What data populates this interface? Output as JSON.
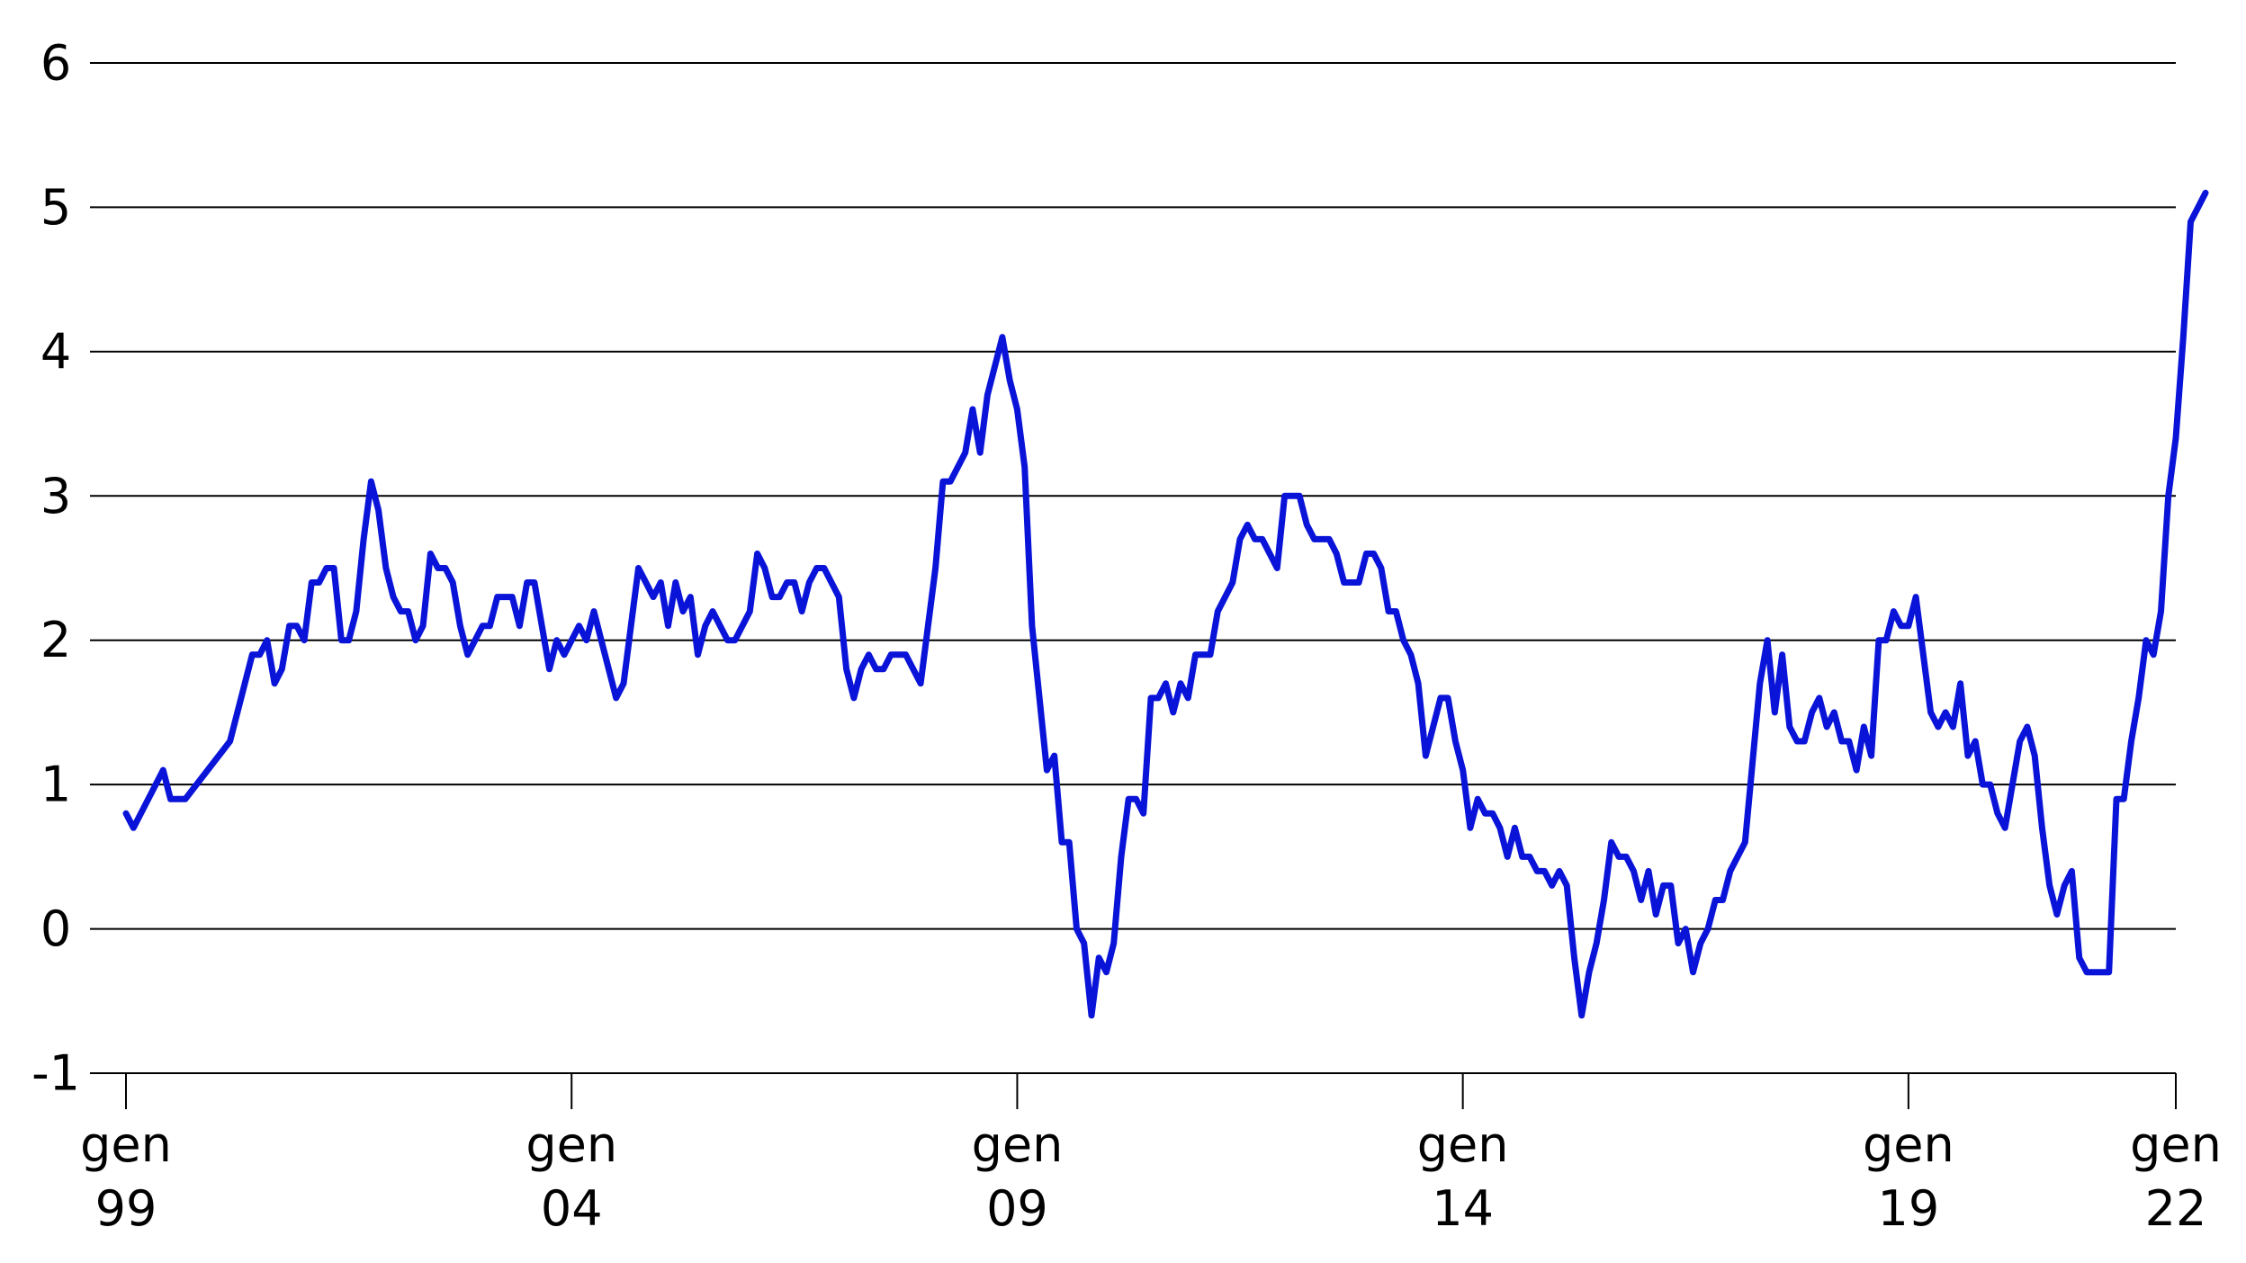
{
  "chart_data": {
    "type": "line",
    "title": "",
    "xlabel": "",
    "ylabel": "",
    "ylim": [
      -1,
      6
    ],
    "yticks": [
      "-1",
      "0",
      "1",
      "2",
      "3",
      "4",
      "5",
      "6"
    ],
    "xlim": [
      "1999-01",
      "2022-01"
    ],
    "xticks": [
      {
        "x": "1999-01",
        "line1": "gen",
        "line2": "99"
      },
      {
        "x": "2004-01",
        "line1": "gen",
        "line2": "04"
      },
      {
        "x": "2009-01",
        "line1": "gen",
        "line2": "09"
      },
      {
        "x": "2014-01",
        "line1": "gen",
        "line2": "14"
      },
      {
        "x": "2019-01",
        "line1": "gen",
        "line2": "19"
      },
      {
        "x": "2022-01",
        "line1": "gen",
        "line2": "22"
      }
    ],
    "grid": true,
    "legend": "none",
    "colors": {
      "series": "#0a14d8",
      "grid": "#000000",
      "text": "#000000"
    },
    "series": [
      {
        "points": [
          [
            "1999-01",
            0.8
          ],
          [
            "1999-02",
            0.7
          ],
          [
            "1999-06",
            1.1
          ],
          [
            "1999-07",
            0.9
          ],
          [
            "1999-09",
            0.9
          ],
          [
            "2000-03",
            1.3
          ],
          [
            "2000-06",
            1.9
          ],
          [
            "2000-07",
            1.9
          ],
          [
            "2000-08",
            2.0
          ],
          [
            "2000-09",
            1.7
          ],
          [
            "2000-10",
            1.8
          ],
          [
            "2000-11",
            2.1
          ],
          [
            "2000-12",
            2.1
          ],
          [
            "2001-01",
            2.0
          ],
          [
            "2001-02",
            2.4
          ],
          [
            "2001-03",
            2.4
          ],
          [
            "2001-04",
            2.5
          ],
          [
            "2001-05",
            2.5
          ],
          [
            "2001-06",
            2.0
          ],
          [
            "2001-07",
            2.0
          ],
          [
            "2001-08",
            2.2
          ],
          [
            "2001-09",
            2.7
          ],
          [
            "2001-10",
            3.1
          ],
          [
            "2001-11",
            2.9
          ],
          [
            "2001-12",
            2.5
          ],
          [
            "2002-01",
            2.3
          ],
          [
            "2002-02",
            2.2
          ],
          [
            "2002-03",
            2.2
          ],
          [
            "2002-04",
            2.0
          ],
          [
            "2002-05",
            2.1
          ],
          [
            "2002-06",
            2.6
          ],
          [
            "2002-07",
            2.5
          ],
          [
            "2002-08",
            2.5
          ],
          [
            "2002-09",
            2.4
          ],
          [
            "2002-10",
            2.1
          ],
          [
            "2002-11",
            1.9
          ],
          [
            "2003-01",
            2.1
          ],
          [
            "2003-02",
            2.1
          ],
          [
            "2003-03",
            2.3
          ],
          [
            "2003-05",
            2.3
          ],
          [
            "2003-06",
            2.1
          ],
          [
            "2003-07",
            2.4
          ],
          [
            "2003-08",
            2.4
          ],
          [
            "2003-10",
            1.8
          ],
          [
            "2003-11",
            2.0
          ],
          [
            "2003-12",
            1.9
          ],
          [
            "2004-02",
            2.1
          ],
          [
            "2004-03",
            2.0
          ],
          [
            "2004-04",
            2.2
          ],
          [
            "2004-05",
            2.0
          ],
          [
            "2004-07",
            1.6
          ],
          [
            "2004-08",
            1.7
          ],
          [
            "2004-09",
            2.1
          ],
          [
            "2004-10",
            2.5
          ],
          [
            "2004-11",
            2.4
          ],
          [
            "2004-12",
            2.3
          ],
          [
            "2005-01",
            2.4
          ],
          [
            "2005-02",
            2.1
          ],
          [
            "2005-03",
            2.4
          ],
          [
            "2005-04",
            2.2
          ],
          [
            "2005-05",
            2.3
          ],
          [
            "2005-06",
            1.9
          ],
          [
            "2005-07",
            2.1
          ],
          [
            "2005-08",
            2.2
          ],
          [
            "2005-10",
            2.0
          ],
          [
            "2005-11",
            2.0
          ],
          [
            "2006-01",
            2.2
          ],
          [
            "2006-02",
            2.6
          ],
          [
            "2006-03",
            2.5
          ],
          [
            "2006-04",
            2.3
          ],
          [
            "2006-05",
            2.3
          ],
          [
            "2006-06",
            2.4
          ],
          [
            "2006-07",
            2.4
          ],
          [
            "2006-08",
            2.2
          ],
          [
            "2006-09",
            2.4
          ],
          [
            "2006-10",
            2.5
          ],
          [
            "2006-11",
            2.5
          ],
          [
            "2007-01",
            2.3
          ],
          [
            "2007-02",
            1.8
          ],
          [
            "2007-03",
            1.6
          ],
          [
            "2007-04",
            1.8
          ],
          [
            "2007-05",
            1.9
          ],
          [
            "2007-06",
            1.8
          ],
          [
            "2007-07",
            1.8
          ],
          [
            "2007-08",
            1.9
          ],
          [
            "2007-10",
            1.9
          ],
          [
            "2007-12",
            1.7
          ],
          [
            "2008-02",
            2.5
          ],
          [
            "2008-03",
            3.1
          ],
          [
            "2008-04",
            3.1
          ],
          [
            "2008-06",
            3.3
          ],
          [
            "2008-07",
            3.6
          ],
          [
            "2008-08",
            3.3
          ],
          [
            "2008-09",
            3.7
          ],
          [
            "2008-11",
            4.1
          ],
          [
            "2008-12",
            3.8
          ],
          [
            "2009-01",
            3.6
          ],
          [
            "2009-02",
            3.2
          ],
          [
            "2009-03",
            2.1
          ],
          [
            "2009-05",
            1.1
          ],
          [
            "2009-06",
            1.2
          ],
          [
            "2009-07",
            0.6
          ],
          [
            "2009-08",
            0.6
          ],
          [
            "2009-09",
            0.0
          ],
          [
            "2009-10",
            -0.1
          ],
          [
            "2009-11",
            -0.6
          ],
          [
            "2009-12",
            -0.2
          ],
          [
            "2010-01",
            -0.3
          ],
          [
            "2010-02",
            -0.1
          ],
          [
            "2010-03",
            0.5
          ],
          [
            "2010-04",
            0.9
          ],
          [
            "2010-05",
            0.9
          ],
          [
            "2010-06",
            0.8
          ],
          [
            "2010-07",
            1.6
          ],
          [
            "2010-08",
            1.6
          ],
          [
            "2010-09",
            1.7
          ],
          [
            "2010-10",
            1.5
          ],
          [
            "2010-11",
            1.7
          ],
          [
            "2010-12",
            1.6
          ],
          [
            "2011-01",
            1.9
          ],
          [
            "2011-03",
            1.9
          ],
          [
            "2011-04",
            2.2
          ],
          [
            "2011-06",
            2.4
          ],
          [
            "2011-07",
            2.7
          ],
          [
            "2011-08",
            2.8
          ],
          [
            "2011-09",
            2.7
          ],
          [
            "2011-10",
            2.7
          ],
          [
            "2011-12",
            2.5
          ],
          [
            "2012-01",
            3.0
          ],
          [
            "2012-03",
            3.0
          ],
          [
            "2012-04",
            2.8
          ],
          [
            "2012-05",
            2.7
          ],
          [
            "2012-07",
            2.7
          ],
          [
            "2012-08",
            2.6
          ],
          [
            "2012-09",
            2.4
          ],
          [
            "2012-11",
            2.4
          ],
          [
            "2012-12",
            2.6
          ],
          [
            "2013-01",
            2.6
          ],
          [
            "2013-02",
            2.5
          ],
          [
            "2013-03",
            2.2
          ],
          [
            "2013-04",
            2.2
          ],
          [
            "2013-05",
            2.0
          ],
          [
            "2013-06",
            1.9
          ],
          [
            "2013-07",
            1.7
          ],
          [
            "2013-08",
            1.2
          ],
          [
            "2013-10",
            1.6
          ],
          [
            "2013-11",
            1.6
          ],
          [
            "2013-12",
            1.3
          ],
          [
            "2014-01",
            1.1
          ],
          [
            "2014-02",
            0.7
          ],
          [
            "2014-03",
            0.9
          ],
          [
            "2014-04",
            0.8
          ],
          [
            "2014-05",
            0.8
          ],
          [
            "2014-06",
            0.7
          ],
          [
            "2014-07",
            0.5
          ],
          [
            "2014-08",
            0.7
          ],
          [
            "2014-09",
            0.5
          ],
          [
            "2014-10",
            0.5
          ],
          [
            "2014-11",
            0.4
          ],
          [
            "2014-12",
            0.4
          ],
          [
            "2015-01",
            0.3
          ],
          [
            "2015-02",
            0.4
          ],
          [
            "2015-03",
            0.3
          ],
          [
            "2015-04",
            -0.2
          ],
          [
            "2015-05",
            -0.6
          ],
          [
            "2015-06",
            -0.3
          ],
          [
            "2015-07",
            -0.1
          ],
          [
            "2015-08",
            0.2
          ],
          [
            "2015-09",
            0.6
          ],
          [
            "2015-10",
            0.5
          ],
          [
            "2015-11",
            0.5
          ],
          [
            "2015-12",
            0.4
          ],
          [
            "2016-01",
            0.2
          ],
          [
            "2016-02",
            0.4
          ],
          [
            "2016-03",
            0.1
          ],
          [
            "2016-04",
            0.3
          ],
          [
            "2016-05",
            0.3
          ],
          [
            "2016-06",
            -0.1
          ],
          [
            "2016-07",
            0.0
          ],
          [
            "2016-08",
            -0.3
          ],
          [
            "2016-09",
            -0.1
          ],
          [
            "2016-10",
            0.0
          ],
          [
            "2016-11",
            0.2
          ],
          [
            "2016-12",
            0.2
          ],
          [
            "2017-01",
            0.4
          ],
          [
            "2017-03",
            0.6
          ],
          [
            "2017-05",
            1.7
          ],
          [
            "2017-06",
            2.0
          ],
          [
            "2017-07",
            1.5
          ],
          [
            "2017-08",
            1.9
          ],
          [
            "2017-09",
            1.4
          ],
          [
            "2017-10",
            1.3
          ],
          [
            "2017-11",
            1.3
          ],
          [
            "2017-12",
            1.5
          ],
          [
            "2018-01",
            1.6
          ],
          [
            "2018-02",
            1.4
          ],
          [
            "2018-03",
            1.5
          ],
          [
            "2018-04",
            1.3
          ],
          [
            "2018-05",
            1.3
          ],
          [
            "2018-06",
            1.1
          ],
          [
            "2018-07",
            1.4
          ],
          [
            "2018-08",
            1.2
          ],
          [
            "2018-09",
            2.0
          ],
          [
            "2018-10",
            2.0
          ],
          [
            "2018-11",
            2.2
          ],
          [
            "2018-12",
            2.1
          ],
          [
            "2019-01",
            2.1
          ],
          [
            "2019-02",
            2.3
          ],
          [
            "2019-04",
            1.5
          ],
          [
            "2019-05",
            1.4
          ],
          [
            "2019-06",
            1.5
          ],
          [
            "2019-07",
            1.4
          ],
          [
            "2019-08",
            1.7
          ],
          [
            "2019-09",
            1.2
          ],
          [
            "2019-10",
            1.3
          ],
          [
            "2019-11",
            1.0
          ],
          [
            "2019-12",
            1.0
          ],
          [
            "2020-01",
            0.8
          ],
          [
            "2020-02",
            0.7
          ],
          [
            "2020-04",
            1.3
          ],
          [
            "2020-05",
            1.4
          ],
          [
            "2020-06",
            1.2
          ],
          [
            "2020-07",
            0.7
          ],
          [
            "2020-08",
            0.3
          ],
          [
            "2020-09",
            0.1
          ],
          [
            "2020-10",
            0.3
          ],
          [
            "2020-11",
            0.4
          ],
          [
            "2020-12",
            -0.2
          ],
          [
            "2021-01",
            -0.3
          ],
          [
            "2021-04",
            -0.3
          ],
          [
            "2021-05",
            0.9
          ],
          [
            "2021-06",
            0.9
          ],
          [
            "2021-07",
            1.3
          ],
          [
            "2021-08",
            1.6
          ],
          [
            "2021-09",
            2.0
          ],
          [
            "2021-10",
            1.9
          ],
          [
            "2021-11",
            2.2
          ],
          [
            "2021-12",
            3.0
          ],
          [
            "2022-01",
            3.4
          ],
          [
            "2022-02",
            4.1
          ],
          [
            "2022-03",
            4.9
          ],
          [
            "2022-04",
            5.0
          ],
          [
            "2022-05",
            5.1
          ]
        ]
      }
    ]
  }
}
